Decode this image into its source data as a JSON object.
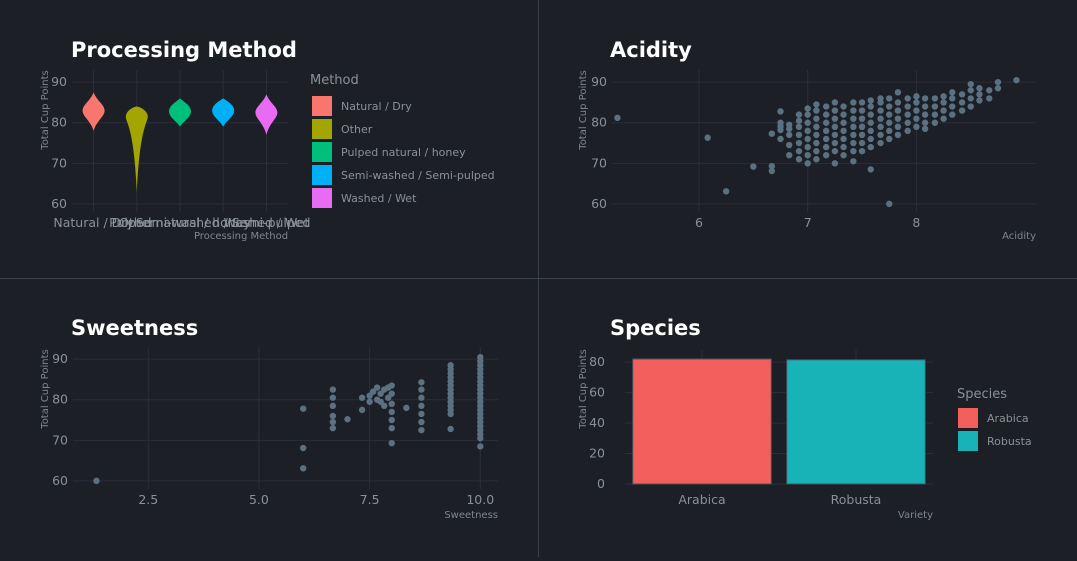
{
  "panels": {
    "processing": {
      "title": "Processing Method",
      "chart_data": {
        "type": "violin",
        "title": "Processing Method",
        "xlabel": "Processing Method",
        "ylabel": "Total Cup Points",
        "ylim": [
          58,
          93
        ],
        "yticks": [
          60,
          70,
          80,
          90
        ],
        "categories": [
          "Natural / Dry",
          "Other",
          "Pulped natural / honey",
          "Semi-washed / Semi-pulped",
          "Washed / Wet"
        ],
        "colors": [
          "#f8766d",
          "#a3a500",
          "#00bf7d",
          "#00b0f6",
          "#e76bf3"
        ],
        "series": [
          {
            "name": "Natural / Dry",
            "min": 78,
            "max": 87.5,
            "median": 83
          },
          {
            "name": "Other",
            "min": 63,
            "max": 84,
            "median": 81.5
          },
          {
            "name": "Pulped natural / honey",
            "min": 79,
            "max": 86,
            "median": 82.8
          },
          {
            "name": "Semi-washed / Semi-pulped",
            "min": 79,
            "max": 86,
            "median": 83
          },
          {
            "name": "Washed / Wet",
            "min": 77,
            "max": 87,
            "median": 82.5
          }
        ],
        "legend_title": "Method",
        "legend": [
          "Natural / Dry",
          "Other",
          "Pulped natural / honey",
          "Semi-washed / Semi-pulped",
          "Washed / Wet"
        ],
        "legend_position": "right",
        "grid": true
      }
    },
    "acidity": {
      "title": "Acidity",
      "chart_data": {
        "type": "scatter",
        "title": "Acidity",
        "xlabel": "Acidity",
        "ylabel": "Total Cup Points",
        "xlim": [
          5.2,
          9.1
        ],
        "ylim": [
          58,
          93
        ],
        "xticks": [
          6,
          7,
          8
        ],
        "yticks": [
          60,
          70,
          80,
          90
        ],
        "color": "#5b7080",
        "points": [
          [
            5.25,
            81.2
          ],
          [
            6.08,
            76.3
          ],
          [
            6.25,
            63.1
          ],
          [
            6.5,
            69.2
          ],
          [
            6.67,
            68.1
          ],
          [
            6.67,
            69.3
          ],
          [
            6.67,
            77.3
          ],
          [
            6.75,
            82.8
          ],
          [
            6.75,
            76
          ],
          [
            6.75,
            78.2
          ],
          [
            6.75,
            79.1
          ],
          [
            6.75,
            80
          ],
          [
            6.83,
            72
          ],
          [
            6.83,
            74.5
          ],
          [
            6.83,
            77
          ],
          [
            6.83,
            78.5
          ],
          [
            6.83,
            79.5
          ],
          [
            6.92,
            71
          ],
          [
            6.92,
            73
          ],
          [
            6.92,
            75
          ],
          [
            6.92,
            77
          ],
          [
            6.92,
            79
          ],
          [
            6.92,
            80.5
          ],
          [
            6.92,
            82
          ],
          [
            7.0,
            70
          ],
          [
            7.0,
            72
          ],
          [
            7.0,
            74
          ],
          [
            7.0,
            76
          ],
          [
            7.0,
            78
          ],
          [
            7.0,
            80
          ],
          [
            7.0,
            82
          ],
          [
            7.0,
            83.5
          ],
          [
            7.08,
            71
          ],
          [
            7.08,
            73
          ],
          [
            7.08,
            75
          ],
          [
            7.08,
            77
          ],
          [
            7.08,
            79
          ],
          [
            7.08,
            81
          ],
          [
            7.08,
            83
          ],
          [
            7.08,
            84.5
          ],
          [
            7.17,
            72
          ],
          [
            7.17,
            74
          ],
          [
            7.17,
            76
          ],
          [
            7.17,
            78
          ],
          [
            7.17,
            80
          ],
          [
            7.17,
            82
          ],
          [
            7.17,
            84
          ],
          [
            7.25,
            70
          ],
          [
            7.25,
            73
          ],
          [
            7.25,
            75
          ],
          [
            7.25,
            77
          ],
          [
            7.25,
            79
          ],
          [
            7.25,
            81
          ],
          [
            7.25,
            83
          ],
          [
            7.25,
            85
          ],
          [
            7.33,
            72
          ],
          [
            7.33,
            74
          ],
          [
            7.33,
            76
          ],
          [
            7.33,
            78
          ],
          [
            7.33,
            80
          ],
          [
            7.33,
            82
          ],
          [
            7.33,
            84
          ],
          [
            7.42,
            70.5
          ],
          [
            7.42,
            73
          ],
          [
            7.42,
            75
          ],
          [
            7.42,
            77
          ],
          [
            7.42,
            79
          ],
          [
            7.42,
            81
          ],
          [
            7.42,
            83
          ],
          [
            7.42,
            85
          ],
          [
            7.5,
            73
          ],
          [
            7.5,
            75
          ],
          [
            7.5,
            77
          ],
          [
            7.5,
            79
          ],
          [
            7.5,
            81
          ],
          [
            7.5,
            83
          ],
          [
            7.5,
            85
          ],
          [
            7.58,
            68.5
          ],
          [
            7.58,
            74
          ],
          [
            7.58,
            76
          ],
          [
            7.58,
            78
          ],
          [
            7.58,
            80
          ],
          [
            7.58,
            82
          ],
          [
            7.58,
            84
          ],
          [
            7.58,
            85.5
          ],
          [
            7.67,
            75
          ],
          [
            7.67,
            77
          ],
          [
            7.67,
            79
          ],
          [
            7.67,
            81
          ],
          [
            7.67,
            83
          ],
          [
            7.67,
            85
          ],
          [
            7.67,
            86
          ],
          [
            7.75,
            60
          ],
          [
            7.75,
            76
          ],
          [
            7.75,
            78
          ],
          [
            7.75,
            80
          ],
          [
            7.75,
            82
          ],
          [
            7.75,
            84
          ],
          [
            7.75,
            86
          ],
          [
            7.83,
            77
          ],
          [
            7.83,
            79
          ],
          [
            7.83,
            81
          ],
          [
            7.83,
            83
          ],
          [
            7.83,
            85
          ],
          [
            7.83,
            87.5
          ],
          [
            7.92,
            78
          ],
          [
            7.92,
            80
          ],
          [
            7.92,
            82
          ],
          [
            7.92,
            84
          ],
          [
            7.92,
            86
          ],
          [
            8.0,
            79
          ],
          [
            8.0,
            81
          ],
          [
            8.0,
            83
          ],
          [
            8.0,
            85
          ],
          [
            8.0,
            86.5
          ],
          [
            8.08,
            78.5
          ],
          [
            8.08,
            80
          ],
          [
            8.08,
            82
          ],
          [
            8.08,
            84
          ],
          [
            8.08,
            86
          ],
          [
            8.17,
            80
          ],
          [
            8.17,
            82
          ],
          [
            8.17,
            84
          ],
          [
            8.17,
            86
          ],
          [
            8.25,
            81
          ],
          [
            8.25,
            83
          ],
          [
            8.25,
            85
          ],
          [
            8.25,
            86.5
          ],
          [
            8.33,
            82
          ],
          [
            8.33,
            84
          ],
          [
            8.33,
            86
          ],
          [
            8.33,
            87.5
          ],
          [
            8.42,
            83
          ],
          [
            8.42,
            85
          ],
          [
            8.42,
            87
          ],
          [
            8.5,
            84
          ],
          [
            8.5,
            86
          ],
          [
            8.5,
            88
          ],
          [
            8.5,
            89.5
          ],
          [
            8.58,
            85.5
          ],
          [
            8.58,
            87
          ],
          [
            8.58,
            88.5
          ],
          [
            8.67,
            86
          ],
          [
            8.67,
            88
          ],
          [
            8.75,
            90
          ],
          [
            8.75,
            88.5
          ],
          [
            8.92,
            90.5
          ]
        ],
        "grid": true
      }
    },
    "sweetness": {
      "title": "Sweetness",
      "chart_data": {
        "type": "scatter",
        "title": "Sweetness",
        "xlabel": "Sweetness",
        "ylabel": "Total Cup Points",
        "xlim": [
          0.8,
          10.4
        ],
        "ylim": [
          58,
          93
        ],
        "xticks": [
          2.5,
          5.0,
          7.5,
          10.0
        ],
        "xtick_labels": [
          "2.5",
          "5.0",
          "7.5",
          "10.0"
        ],
        "yticks": [
          60,
          70,
          80,
          90
        ],
        "color": "#5b7080",
        "points": [
          [
            1.33,
            60
          ],
          [
            6.0,
            63.1
          ],
          [
            6.0,
            68.1
          ],
          [
            6.0,
            77.8
          ],
          [
            6.67,
            73
          ],
          [
            6.67,
            74.5
          ],
          [
            6.67,
            76
          ],
          [
            6.67,
            78.5
          ],
          [
            6.67,
            80.5
          ],
          [
            6.67,
            82.5
          ],
          [
            7.0,
            75.2
          ],
          [
            7.33,
            77.5
          ],
          [
            7.33,
            80.5
          ],
          [
            7.5,
            79.5
          ],
          [
            7.5,
            81
          ],
          [
            7.58,
            82
          ],
          [
            7.67,
            80
          ],
          [
            7.67,
            83
          ],
          [
            7.75,
            79.5
          ],
          [
            7.75,
            81.5
          ],
          [
            7.83,
            78.5
          ],
          [
            7.83,
            82.5
          ],
          [
            7.92,
            80.5
          ],
          [
            7.92,
            83
          ],
          [
            8.0,
            81.5
          ],
          [
            8.0,
            83.5
          ],
          [
            8.0,
            69.3
          ],
          [
            8.0,
            73
          ],
          [
            8.0,
            75
          ],
          [
            8.0,
            77
          ],
          [
            8.0,
            79
          ],
          [
            8.33,
            78
          ],
          [
            8.67,
            72.5
          ],
          [
            8.67,
            74.5
          ],
          [
            8.67,
            76.5
          ],
          [
            8.67,
            78.5
          ],
          [
            8.67,
            80.5
          ],
          [
            8.67,
            82.5
          ],
          [
            8.67,
            84.3
          ],
          [
            9.33,
            72.8
          ],
          [
            9.33,
            76.5
          ],
          [
            9.33,
            77.5
          ],
          [
            9.33,
            78.5
          ],
          [
            9.33,
            79.5
          ],
          [
            9.33,
            80.5
          ],
          [
            9.33,
            81.5
          ],
          [
            9.33,
            82.5
          ],
          [
            9.33,
            83.5
          ],
          [
            9.33,
            84.5
          ],
          [
            9.33,
            85.5
          ],
          [
            9.33,
            86.5
          ],
          [
            9.33,
            87.5
          ],
          [
            9.33,
            88.5
          ],
          [
            10.0,
            68.5
          ],
          [
            10.0,
            70.5
          ],
          [
            10.0,
            71.5
          ],
          [
            10.0,
            72.5
          ],
          [
            10.0,
            73.5
          ],
          [
            10.0,
            74.5
          ],
          [
            10.0,
            75.5
          ],
          [
            10.0,
            76.5
          ],
          [
            10.0,
            77.5
          ],
          [
            10.0,
            78.5
          ],
          [
            10.0,
            79.5
          ],
          [
            10.0,
            80.5
          ],
          [
            10.0,
            81.5
          ],
          [
            10.0,
            82.5
          ],
          [
            10.0,
            83.5
          ],
          [
            10.0,
            84.5
          ],
          [
            10.0,
            85.5
          ],
          [
            10.0,
            86.5
          ],
          [
            10.0,
            87.5
          ],
          [
            10.0,
            88.5
          ],
          [
            10.0,
            89.5
          ],
          [
            10.0,
            90.5
          ]
        ],
        "grid": true
      }
    },
    "species": {
      "title": "Species",
      "chart_data": {
        "type": "bar",
        "title": "Species",
        "xlabel": "Variety",
        "ylabel": "Total Cup Points",
        "ylim": [
          0,
          88
        ],
        "yticks": [
          0,
          20,
          40,
          60,
          80
        ],
        "categories": [
          "Arabica",
          "Robusta"
        ],
        "values": [
          82.1,
          81.6
        ],
        "colors": [
          "#f25f5c",
          "#17b3b7"
        ],
        "legend_title": "Species",
        "legend": [
          "Arabica",
          "Robusta"
        ],
        "legend_position": "right",
        "grid": true
      }
    }
  }
}
